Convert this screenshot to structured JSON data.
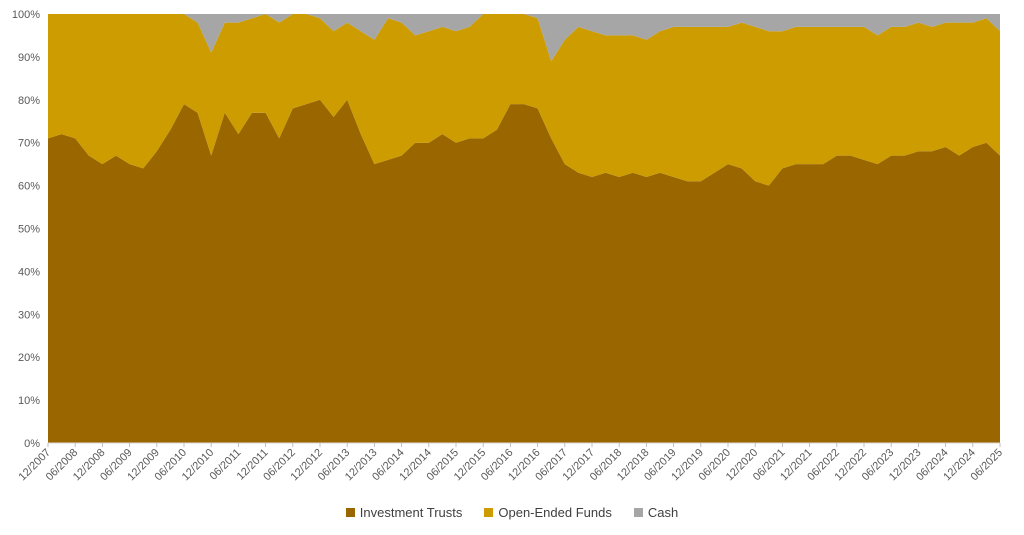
{
  "chart_data": {
    "type": "area",
    "stacked": true,
    "percent": true,
    "title": "",
    "xlabel": "",
    "ylabel": "",
    "ylim": [
      0,
      100
    ],
    "yticks": [
      "0%",
      "10%",
      "20%",
      "30%",
      "40%",
      "50%",
      "60%",
      "70%",
      "80%",
      "90%",
      "100%"
    ],
    "xticks": [
      "12/2007",
      "06/2008",
      "12/2008",
      "06/2009",
      "12/2009",
      "06/2010",
      "12/2010",
      "06/2011",
      "12/2011",
      "06/2012",
      "12/2012",
      "06/2013",
      "12/2013",
      "06/2014",
      "12/2014",
      "06/2015",
      "12/2015",
      "06/2016",
      "12/2016",
      "06/2017",
      "12/2017",
      "06/2018",
      "12/2018",
      "06/2019",
      "12/2019",
      "06/2020",
      "12/2020",
      "06/2021",
      "12/2021",
      "06/2022",
      "12/2022",
      "06/2023",
      "12/2023",
      "06/2024",
      "12/2024",
      "06/2025"
    ],
    "grid": false,
    "legend_position": "bottom",
    "colors": {
      "investment_trusts": "#996600",
      "open_ended_funds": "#CC9C00",
      "cash": "#A6A6A6"
    },
    "x": [
      "12/2007",
      "03/2008",
      "06/2008",
      "09/2008",
      "12/2008",
      "03/2009",
      "06/2009",
      "09/2009",
      "12/2009",
      "03/2010",
      "06/2010",
      "09/2010",
      "12/2010",
      "03/2011",
      "06/2011",
      "09/2011",
      "12/2011",
      "03/2012",
      "06/2012",
      "09/2012",
      "12/2012",
      "03/2013",
      "06/2013",
      "09/2013",
      "12/2013",
      "03/2014",
      "06/2014",
      "09/2014",
      "12/2014",
      "03/2015",
      "06/2015",
      "09/2015",
      "12/2015",
      "03/2016",
      "06/2016",
      "09/2016",
      "12/2016",
      "03/2017",
      "06/2017",
      "09/2017",
      "12/2017",
      "03/2018",
      "06/2018",
      "09/2018",
      "12/2018",
      "03/2019",
      "06/2019",
      "09/2019",
      "12/2019",
      "03/2020",
      "06/2020",
      "09/2020",
      "12/2020",
      "03/2021",
      "06/2021",
      "09/2021",
      "12/2021",
      "03/2022",
      "06/2022",
      "09/2022",
      "12/2022",
      "03/2023",
      "06/2023",
      "09/2023",
      "12/2023",
      "03/2024",
      "06/2024",
      "09/2024",
      "12/2024",
      "03/2025",
      "06/2025"
    ],
    "series": [
      {
        "name": "Investment Trusts",
        "values": [
          71,
          72,
          71,
          67,
          65,
          67,
          65,
          64,
          68,
          73,
          79,
          77,
          67,
          77,
          72,
          77,
          77,
          71,
          78,
          79,
          80,
          76,
          80,
          72,
          65,
          66,
          67,
          70,
          70,
          72,
          70,
          71,
          71,
          73,
          79,
          79,
          78,
          71,
          65,
          63,
          62,
          63,
          62,
          63,
          62,
          63,
          62,
          61,
          61,
          63,
          65,
          64,
          61,
          60,
          64,
          65,
          65,
          65,
          67,
          67,
          66,
          65,
          67,
          67,
          68,
          68,
          69,
          67,
          69,
          70,
          67
        ]
      },
      {
        "name": "Open-Ended Funds",
        "values": [
          29,
          28,
          29,
          33,
          35,
          33,
          35,
          36,
          32,
          27,
          21,
          21,
          24,
          21,
          26,
          22,
          23,
          27,
          22,
          21,
          19,
          20,
          18,
          24,
          29,
          33,
          31,
          25,
          26,
          25,
          26,
          26,
          29,
          27,
          21,
          21,
          21,
          18,
          29,
          34,
          34,
          32,
          33,
          32,
          32,
          33,
          35,
          36,
          36,
          34,
          32,
          34,
          36,
          36,
          32,
          32,
          32,
          32,
          30,
          30,
          31,
          30,
          30,
          30,
          30,
          29,
          29,
          31,
          29,
          29,
          29
        ]
      },
      {
        "name": "Cash",
        "values": [
          0,
          0,
          0,
          0,
          0,
          0,
          0,
          0,
          0,
          0,
          0,
          2,
          9,
          2,
          2,
          1,
          0,
          2,
          0,
          0,
          1,
          4,
          2,
          4,
          6,
          1,
          2,
          5,
          4,
          3,
          4,
          3,
          0,
          0,
          0,
          0,
          1,
          11,
          6,
          3,
          4,
          5,
          5,
          5,
          6,
          4,
          3,
          3,
          3,
          3,
          3,
          2,
          3,
          4,
          4,
          3,
          3,
          3,
          3,
          3,
          3,
          5,
          3,
          3,
          2,
          3,
          2,
          2,
          2,
          1,
          4
        ]
      }
    ]
  }
}
